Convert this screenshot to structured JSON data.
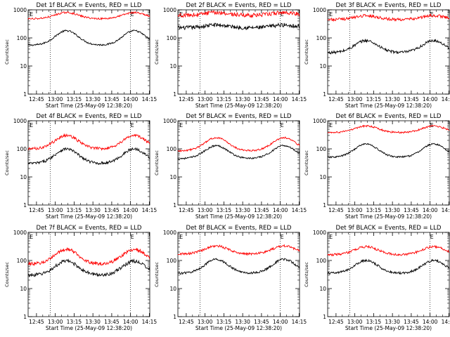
{
  "chart_data": [
    {
      "type": "line",
      "title": "Det 1f BLACK = Events, RED = LLD",
      "xlabel": "Start Time (25-May-09 12:38:20)",
      "ylabel": "Counts/sec",
      "yscale": "log",
      "ylim": [
        1,
        1000
      ],
      "y_ticks": [
        "1",
        "10",
        "100",
        "1000"
      ],
      "x_ticks": [
        "12:45",
        "13:00",
        "13:15",
        "13:30",
        "13:45",
        "14:00",
        "14:15"
      ],
      "markers": [
        "E",
        "E"
      ],
      "series": [
        {
          "color": "#000000",
          "base": 55,
          "peak": 180,
          "noise": 0.03
        },
        {
          "color": "#ff0000",
          "base": 480,
          "peak": 800,
          "noise": 0.03
        }
      ]
    },
    {
      "type": "line",
      "title": "Det 2f BLACK = Events, RED = LLD",
      "xlabel": "Start Time (25-May-09 12:38:20)",
      "ylabel": "Counts/sec",
      "yscale": "log",
      "ylim": [
        1,
        1000
      ],
      "y_ticks": [
        "1",
        "10",
        "100",
        "1000"
      ],
      "x_ticks": [
        "12:45",
        "13:00",
        "13:15",
        "13:30",
        "13:45",
        "14:00",
        "14:15"
      ],
      "markers": [
        "E",
        "E"
      ],
      "series": [
        {
          "color": "#000000",
          "base": 230,
          "peak": 290,
          "noise": 0.07
        },
        {
          "color": "#ff0000",
          "base": 640,
          "peak": 800,
          "noise": 0.07
        }
      ]
    },
    {
      "type": "line",
      "title": "Det 3f BLACK = Events, RED = LLD",
      "xlabel": "Start Time (25-May-09 12:38:20)",
      "ylabel": "Counts/sec",
      "yscale": "log",
      "ylim": [
        1,
        1000
      ],
      "y_ticks": [
        "1",
        "10",
        "100",
        "1000"
      ],
      "x_ticks": [
        "12:45",
        "13:00",
        "13:15",
        "13:30",
        "13:45",
        "14:00",
        "14:15"
      ],
      "markers": [
        "E",
        "E"
      ],
      "series": [
        {
          "color": "#000000",
          "base": 30,
          "peak": 80,
          "noise": 0.05
        },
        {
          "color": "#ff0000",
          "base": 450,
          "peak": 620,
          "noise": 0.05
        }
      ]
    },
    {
      "type": "line",
      "title": "Det 4f BLACK = Events, RED = LLD",
      "xlabel": "Start Time (25-May-09 12:38:20)",
      "ylabel": "Counts/sec",
      "yscale": "log",
      "ylim": [
        1,
        1000
      ],
      "y_ticks": [
        "1",
        "10",
        "100",
        "1000"
      ],
      "x_ticks": [
        "12:45",
        "13:00",
        "13:15",
        "13:30",
        "13:45",
        "14:00",
        "14:15"
      ],
      "markers": [
        "E",
        "E"
      ],
      "series": [
        {
          "color": "#000000",
          "base": 30,
          "peak": 100,
          "noise": 0.05
        },
        {
          "color": "#ff0000",
          "base": 100,
          "peak": 300,
          "noise": 0.05
        }
      ]
    },
    {
      "type": "line",
      "title": "Det 5f BLACK = Events, RED = LLD",
      "xlabel": "Start Time (25-May-09 12:38:20)",
      "ylabel": "Counts/sec",
      "yscale": "log",
      "ylim": [
        1,
        1000
      ],
      "y_ticks": [
        "1",
        "10",
        "100",
        "1000"
      ],
      "x_ticks": [
        "12:45",
        "13:00",
        "13:15",
        "13:30",
        "13:45",
        "14:00",
        "14:15"
      ],
      "markers": [
        "E",
        "E"
      ],
      "series": [
        {
          "color": "#000000",
          "base": 45,
          "peak": 130,
          "noise": 0.03
        },
        {
          "color": "#ff0000",
          "base": 85,
          "peak": 250,
          "noise": 0.03
        }
      ]
    },
    {
      "type": "line",
      "title": "Det 6f BLACK = Events, RED = LLD",
      "xlabel": "Start Time (25-May-09 12:38:20)",
      "ylabel": "Counts/sec",
      "yscale": "log",
      "ylim": [
        1,
        1000
      ],
      "y_ticks": [
        "1",
        "10",
        "100",
        "1000"
      ],
      "x_ticks": [
        "12:45",
        "13:00",
        "13:15",
        "13:30",
        "13:45",
        "14:00",
        "14:15"
      ],
      "markers": [
        "E",
        "E"
      ],
      "series": [
        {
          "color": "#000000",
          "base": 50,
          "peak": 150,
          "noise": 0.03
        },
        {
          "color": "#ff0000",
          "base": 380,
          "peak": 650,
          "noise": 0.03
        }
      ]
    },
    {
      "type": "line",
      "title": "Det 7f BLACK = Events, RED = LLD",
      "xlabel": "Start Time (25-May-09 12:38:20)",
      "ylabel": "Counts/sec",
      "yscale": "log",
      "ylim": [
        1,
        1000
      ],
      "y_ticks": [
        "1",
        "10",
        "100",
        "1000"
      ],
      "x_ticks": [
        "12:45",
        "13:00",
        "13:15",
        "13:30",
        "13:45",
        "14:00",
        "14:15"
      ],
      "markers": [
        "E",
        "E"
      ],
      "series": [
        {
          "color": "#000000",
          "base": 30,
          "peak": 95,
          "noise": 0.06
        },
        {
          "color": "#ff0000",
          "base": 75,
          "peak": 250,
          "noise": 0.06
        }
      ]
    },
    {
      "type": "line",
      "title": "Det 8f BLACK = Events, RED = LLD",
      "xlabel": "Start Time (25-May-09 12:38:20)",
      "ylabel": "Counts/sec",
      "yscale": "log",
      "ylim": [
        1,
        1000
      ],
      "y_ticks": [
        "1",
        "10",
        "100",
        "1000"
      ],
      "x_ticks": [
        "12:45",
        "13:00",
        "13:15",
        "13:30",
        "13:45",
        "14:00",
        "14:15"
      ],
      "markers": [
        "E",
        "E"
      ],
      "series": [
        {
          "color": "#000000",
          "base": 35,
          "peak": 110,
          "noise": 0.04
        },
        {
          "color": "#ff0000",
          "base": 170,
          "peak": 330,
          "noise": 0.04
        }
      ]
    },
    {
      "type": "line",
      "title": "Det 9f BLACK = Events, RED = LLD",
      "xlabel": "Start Time (25-May-09 12:38:20)",
      "ylabel": "Counts/sec",
      "yscale": "log",
      "ylim": [
        1,
        1000
      ],
      "y_ticks": [
        "1",
        "10",
        "100",
        "1000"
      ],
      "x_ticks": [
        "12:45",
        "13:00",
        "13:15",
        "13:30",
        "13:45",
        "14:00",
        "14:15"
      ],
      "markers": [
        "E",
        "E"
      ],
      "series": [
        {
          "color": "#000000",
          "base": 35,
          "peak": 100,
          "noise": 0.04
        },
        {
          "color": "#ff0000",
          "base": 160,
          "peak": 310,
          "noise": 0.04
        }
      ]
    }
  ]
}
